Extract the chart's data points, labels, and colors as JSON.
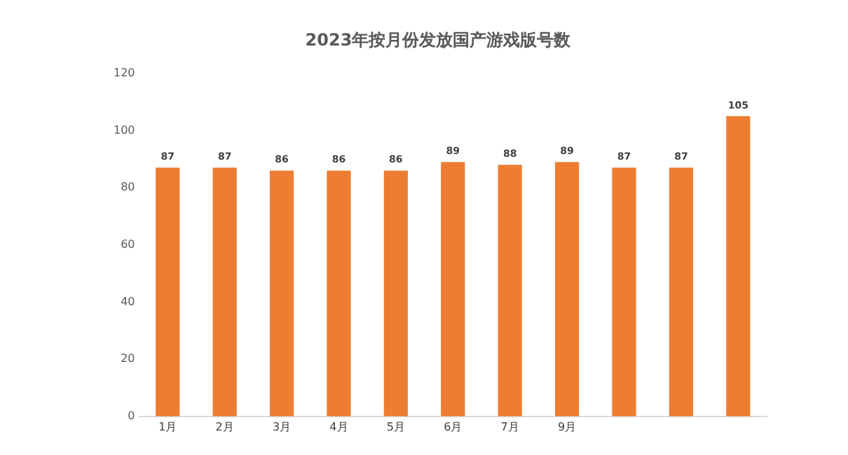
{
  "chart_data": {
    "type": "bar",
    "title": "2023年按月份发放国产游戏版号数",
    "categories": [
      "1月",
      "2月",
      "3月",
      "4月",
      "5月",
      "6月",
      "7月",
      "9月",
      null,
      null,
      null
    ],
    "values": [
      87,
      87,
      86,
      86,
      86,
      89,
      88,
      89,
      87,
      87,
      105
    ],
    "color": "#ed7d31",
    "ylim": [
      0,
      120
    ],
    "yticks": [
      0,
      20,
      40,
      60,
      80,
      100,
      120
    ],
    "grid": false,
    "data_labels": true,
    "legend": false
  }
}
